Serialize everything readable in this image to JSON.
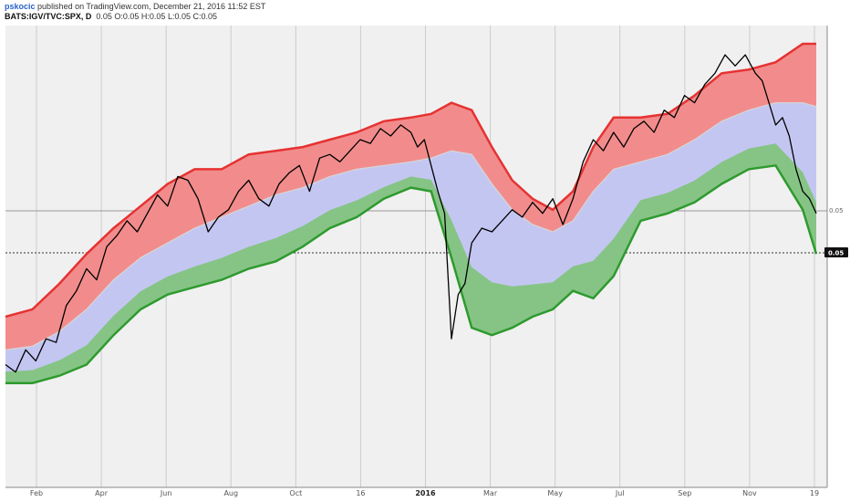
{
  "header": {
    "user": "pskocic",
    "published": "published on TradingView.com, December 21, 2016 11:52 EST",
    "symbol": "BATS:IGV/TVC:SPX, D",
    "open": "0.05",
    "ohlc": "O:0.05 H:0.05 L:0.05 C:0.05"
  },
  "colors": {
    "upper_line": "#e63232",
    "upper_fill": "#f28c8c",
    "middle_fill": "#c4c6f2",
    "lower_fill": "#86c486",
    "lower_line": "#2e9a2e",
    "mid_line": "#d6d6d6",
    "price_line": "#000000",
    "grid": "#cccccc",
    "background": "#f0f0f0"
  },
  "chart_data": {
    "type": "line",
    "x_tick_labels": [
      "Feb",
      "Apr",
      "Jun",
      "Aug",
      "Oct",
      "16",
      "2016",
      "Mar",
      "May",
      "Jul",
      "Sep",
      "Nov",
      "19"
    ],
    "x_tick_bold": [
      "2016"
    ],
    "price_scale_labels": [
      "0.05",
      "0.05"
    ],
    "current_value_label": "0.05",
    "grid": true,
    "x_index_range": [
      0,
      240
    ],
    "ylim": [
      0,
      100
    ],
    "series": [
      {
        "role": "upper_band",
        "x": [
          0,
          8,
          16,
          24,
          32,
          40,
          48,
          56,
          64,
          72,
          80,
          88,
          96,
          104,
          112,
          120,
          126,
          132,
          138,
          144,
          150,
          156,
          162,
          168,
          174,
          180,
          188,
          196,
          204,
          212,
          220,
          228,
          236,
          240
        ],
        "values": [
          26,
          28,
          35,
          43,
          50,
          56,
          62,
          66,
          66,
          70,
          71,
          72,
          74,
          76,
          79,
          80,
          81,
          84,
          82,
          72,
          63,
          58,
          55,
          60,
          72,
          80,
          80,
          81,
          86,
          92,
          93,
          95,
          100,
          100
        ]
      },
      {
        "role": "middle_band",
        "x": [
          0,
          8,
          16,
          24,
          32,
          40,
          48,
          56,
          64,
          72,
          80,
          88,
          96,
          104,
          112,
          120,
          126,
          132,
          138,
          144,
          150,
          156,
          162,
          168,
          174,
          180,
          188,
          196,
          204,
          212,
          220,
          228,
          236,
          240
        ],
        "values": [
          17,
          18,
          22,
          28,
          36,
          42,
          46,
          50,
          53,
          56,
          59,
          61,
          64,
          66,
          67,
          68,
          69,
          71,
          70,
          62,
          55,
          51,
          49,
          52,
          60,
          66,
          68,
          70,
          74,
          79,
          82,
          84,
          84,
          83
        ]
      },
      {
        "role": "lower_band",
        "x": [
          0,
          8,
          16,
          24,
          32,
          40,
          48,
          56,
          64,
          72,
          80,
          88,
          96,
          104,
          112,
          120,
          126,
          132,
          138,
          144,
          150,
          156,
          162,
          168,
          174,
          180,
          188,
          196,
          204,
          212,
          220,
          228,
          236,
          240
        ],
        "values": [
          8,
          8,
          10,
          13,
          21,
          28,
          32,
          34,
          36,
          39,
          41,
          45,
          50,
          53,
          58,
          61,
          60,
          42,
          23,
          21,
          23,
          26,
          28,
          33,
          31,
          37,
          52,
          54,
          57,
          62,
          66,
          67,
          55,
          43
        ]
      },
      {
        "role": "price",
        "x": [
          0,
          3,
          6,
          9,
          12,
          15,
          18,
          21,
          24,
          27,
          30,
          33,
          36,
          39,
          42,
          45,
          48,
          51,
          54,
          57,
          60,
          63,
          66,
          69,
          72,
          75,
          78,
          81,
          84,
          87,
          90,
          93,
          96,
          99,
          102,
          105,
          108,
          111,
          114,
          117,
          120,
          122,
          124,
          126,
          128,
          130,
          132,
          134,
          136,
          138,
          141,
          144,
          147,
          150,
          153,
          156,
          159,
          162,
          165,
          168,
          171,
          174,
          177,
          180,
          183,
          186,
          189,
          192,
          195,
          198,
          201,
          204,
          207,
          210,
          213,
          216,
          219,
          222,
          224,
          226,
          228,
          230,
          232,
          234,
          236,
          238,
          240
        ],
        "values": [
          13,
          11,
          17,
          14,
          20,
          19,
          29,
          33,
          39,
          36,
          45,
          48,
          52,
          49,
          54,
          59,
          56,
          64,
          63,
          58,
          49,
          53,
          55,
          60,
          63,
          58,
          56,
          62,
          65,
          67,
          60,
          69,
          70,
          68,
          71,
          74,
          73,
          77,
          75,
          78,
          76,
          72,
          74,
          67,
          60,
          54,
          20,
          32,
          35,
          46,
          50,
          49,
          52,
          55,
          53,
          57,
          54,
          58,
          51,
          58,
          68,
          74,
          71,
          76,
          72,
          77,
          79,
          76,
          82,
          80,
          86,
          84,
          89,
          92,
          97,
          94,
          97,
          92,
          90,
          84,
          78,
          80,
          75,
          66,
          60,
          58,
          54
        ]
      }
    ]
  }
}
